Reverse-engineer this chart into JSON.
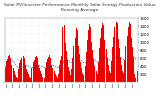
{
  "title": "Solar PV/Inverter Performance Monthly Solar Energy Production Value Running Average",
  "bar_values": [
    350,
    520,
    580,
    640,
    670,
    600,
    430,
    340,
    270,
    180,
    120,
    90,
    320,
    470,
    550,
    610,
    650,
    590,
    420,
    330,
    260,
    190,
    130,
    95,
    340,
    490,
    560,
    620,
    660,
    600,
    430,
    345,
    275,
    195,
    135,
    98,
    345,
    495,
    565,
    625,
    665,
    605,
    435,
    348,
    278,
    198,
    138,
    100,
    210,
    430,
    550,
    640,
    1380,
    1420,
    980,
    780,
    555,
    375,
    275,
    185,
    315,
    610,
    910,
    1110,
    1360,
    1310,
    910,
    705,
    505,
    355,
    225,
    182,
    405,
    755,
    1055,
    1305,
    1455,
    1385,
    1005,
    805,
    585,
    405,
    265,
    205,
    505,
    855,
    1105,
    1355,
    1485,
    1435,
    1055,
    835,
    605,
    415,
    275,
    225,
    525,
    885,
    1125,
    1375,
    1505,
    1465,
    1085,
    855,
    625,
    425,
    285,
    235,
    545,
    905,
    1145,
    1385,
    1495,
    1455,
    1095,
    865,
    635,
    205,
    95,
    285
  ],
  "running_avg": [
    350,
    435,
    483,
    523,
    552,
    560,
    542,
    516,
    484,
    449,
    408,
    369,
    356,
    364,
    378,
    395,
    413,
    423,
    425,
    420,
    410,
    398,
    381,
    361,
    352,
    358,
    367,
    378,
    392,
    401,
    406,
    404,
    399,
    391,
    379,
    364,
    355,
    361,
    370,
    380,
    393,
    402,
    407,
    406,
    401,
    394,
    382,
    367,
    355,
    358,
    369,
    387,
    462,
    530,
    567,
    573,
    564,
    546,
    521,
    492,
    481,
    487,
    503,
    525,
    551,
    569,
    572,
    566,
    553,
    534,
    510,
    485,
    478,
    494,
    519,
    548,
    575,
    591,
    593,
    588,
    573,
    554,
    530,
    504,
    498,
    517,
    544,
    572,
    596,
    610,
    613,
    608,
    595,
    577,
    553,
    528,
    522,
    542,
    569,
    596,
    618,
    631,
    634,
    630,
    618,
    601,
    578,
    553,
    549,
    570,
    598,
    625,
    643,
    654,
    656,
    652,
    641,
    613,
    572,
    558
  ],
  "bar_color": "#ee0000",
  "avg_color": "#0055ff",
  "dot_color": "#0000cc",
  "bg_color": "#ffffff",
  "plot_bg": "#ffffff",
  "grid_color": "#aaaaaa",
  "text_color": "#000000",
  "title_color": "#333333",
  "ylim": [
    0,
    1600
  ],
  "ytick_values": [
    200,
    400,
    600,
    800,
    1000,
    1200,
    1400,
    1600
  ],
  "n_bars": 120,
  "title_fontsize": 3.2,
  "tick_fontsize": 2.8
}
